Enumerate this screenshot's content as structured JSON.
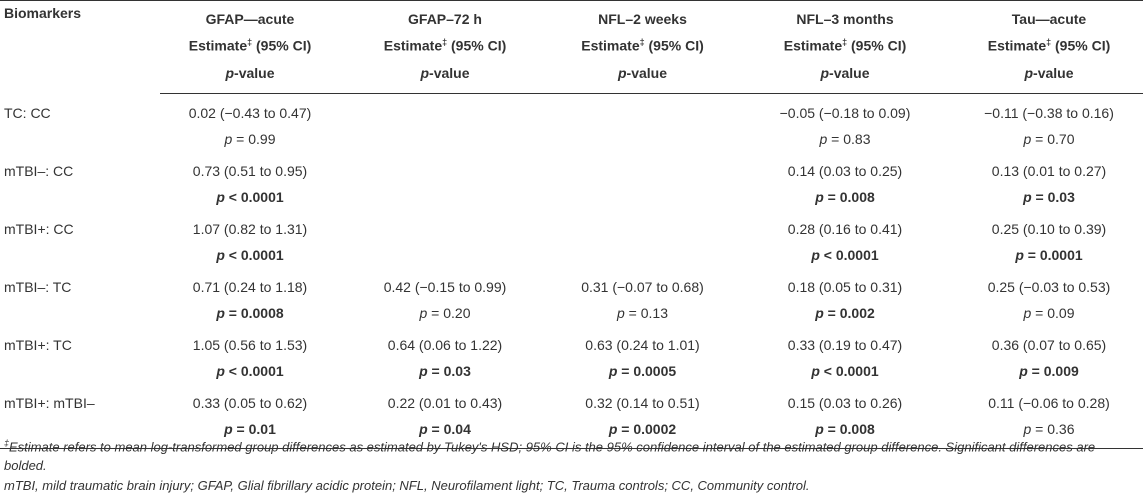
{
  "header": {
    "biomarkers": "Biomarkers",
    "columns": [
      {
        "name": "GFAP—acute",
        "estimate": "Estimate",
        "ci": " (95% CI)",
        "p": "p",
        "p_rest": "-value"
      },
      {
        "name": "GFAP–72 h",
        "estimate": "Estimate",
        "ci": " (95% CI)",
        "p": "p",
        "p_rest": "-value"
      },
      {
        "name": "NFL–2 weeks",
        "estimate": "Estimate",
        "ci": " (95% CI)",
        "p": "p",
        "p_rest": "-value"
      },
      {
        "name": "NFL–3 months",
        "estimate": "Estimate",
        "ci": " (95% CI)",
        "p": "p",
        "p_rest": "-value"
      },
      {
        "name": "Tau—acute",
        "estimate": "Estimate",
        "ci": " (95% CI)",
        "p": "p",
        "p_rest": "-value"
      }
    ],
    "dagger": "‡"
  },
  "rows": [
    {
      "label": "TC: CC",
      "est": [
        "0.02 (−0.43 to 0.47)",
        "",
        "",
        "−0.05 (−0.18 to 0.09)",
        "−0.11 (−0.38 to 0.16)"
      ],
      "p": [
        [
          "p",
          " = 0.99"
        ],
        [
          "",
          ""
        ],
        [
          "",
          ""
        ],
        [
          "p",
          " = 0.83"
        ],
        [
          "p",
          " = 0.70"
        ]
      ],
      "sig": [
        false,
        false,
        false,
        false,
        false
      ]
    },
    {
      "label": "mTBI–: CC",
      "est": [
        "0.73 (0.51 to 0.95)",
        "",
        "",
        "0.14 (0.03 to 0.25)",
        "0.13 (0.01 to 0.27)"
      ],
      "p": [
        [
          "p",
          " < 0.0001"
        ],
        [
          "",
          ""
        ],
        [
          "",
          ""
        ],
        [
          "p",
          " = 0.008"
        ],
        [
          "p",
          " = 0.03"
        ]
      ],
      "sig": [
        true,
        false,
        false,
        true,
        true
      ]
    },
    {
      "label": "mTBI+: CC",
      "est": [
        "1.07 (0.82 to 1.31)",
        "",
        "",
        "0.28 (0.16 to 0.41)",
        "0.25 (0.10 to 0.39)"
      ],
      "p": [
        [
          "p",
          " < 0.0001"
        ],
        [
          "",
          ""
        ],
        [
          "",
          ""
        ],
        [
          "p",
          " < 0.0001"
        ],
        [
          "p",
          " = 0.0001"
        ]
      ],
      "sig": [
        true,
        false,
        false,
        true,
        true
      ]
    },
    {
      "label": "mTBI–: TC",
      "est": [
        "0.71 (0.24 to 1.18)",
        "0.42 (−0.15 to 0.99)",
        "0.31 (−0.07 to 0.68)",
        "0.18 (0.05 to 0.31)",
        "0.25 (−0.03 to 0.53)"
      ],
      "p": [
        [
          "p",
          " = 0.0008"
        ],
        [
          "p",
          " = 0.20"
        ],
        [
          "p",
          " = 0.13"
        ],
        [
          "p",
          " = 0.002"
        ],
        [
          "p",
          " = 0.09"
        ]
      ],
      "sig": [
        true,
        false,
        false,
        true,
        false
      ]
    },
    {
      "label": "mTBI+: TC",
      "est": [
        "1.05 (0.56 to 1.53)",
        "0.64 (0.06 to 1.22)",
        "0.63 (0.24 to 1.01)",
        "0.33 (0.19 to 0.47)",
        "0.36 (0.07 to 0.65)"
      ],
      "p": [
        [
          "p",
          " < 0.0001"
        ],
        [
          "p",
          " = 0.03"
        ],
        [
          "p",
          " = 0.0005"
        ],
        [
          "p",
          " < 0.0001"
        ],
        [
          "p",
          " = 0.009"
        ]
      ],
      "sig": [
        true,
        true,
        true,
        true,
        true
      ]
    },
    {
      "label": "mTBI+: mTBI–",
      "est": [
        "0.33 (0.05 to 0.62)",
        "0.22 (0.01 to 0.43)",
        "0.32 (0.14 to 0.51)",
        "0.15 (0.03 to 0.26)",
        "0.11 (−0.06 to 0.28)"
      ],
      "p": [
        [
          "p",
          " = 0.01"
        ],
        [
          "p",
          " = 0.04"
        ],
        [
          "p",
          " = 0.0002"
        ],
        [
          "p",
          " = 0.008"
        ],
        [
          "p",
          " = 0.36"
        ]
      ],
      "sig": [
        true,
        true,
        true,
        true,
        false
      ]
    }
  ],
  "footnotes": {
    "dagger": "‡",
    "note1": "Estimate refers to mean log-transformed group differences as estimated by Tukey's HSD; 95% CI is the 95% confidence interval of the estimated group difference. Significant differences are bolded.",
    "note2": "mTBI, mild traumatic brain injury; GFAP, Glial fibrillary acidic protein; NFL, Neurofilament light; TC, Trauma controls; CC, Community control."
  }
}
